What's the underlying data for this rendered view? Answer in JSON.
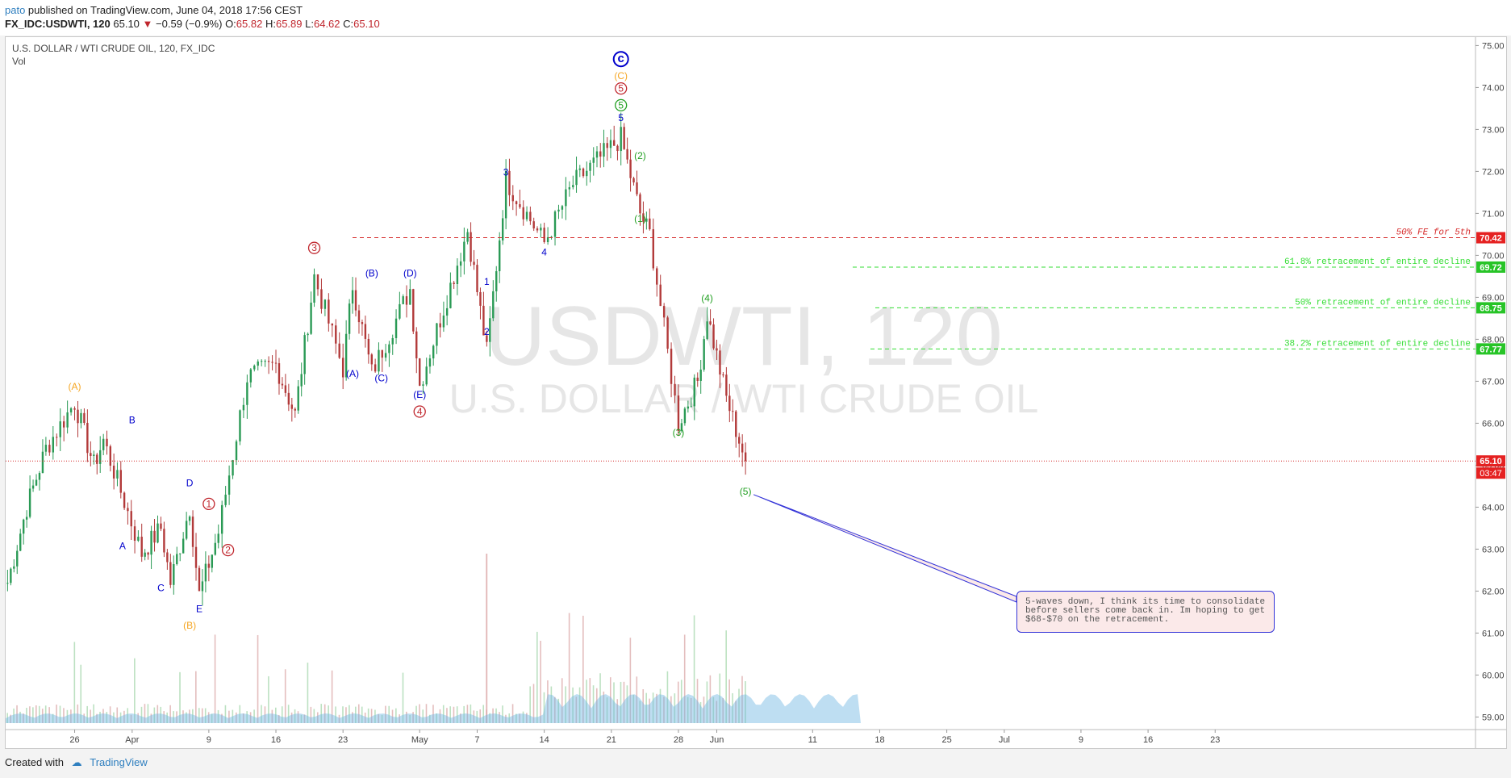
{
  "header": {
    "user": "pato",
    "published_text": " published on TradingView.com, June 04, 2018 17:56 CEST",
    "symbol": "FX_IDC:USDWTI, 120",
    "last": "65.10",
    "change": "−0.59 (−0.9%)",
    "o_label": "O:",
    "o": "65.82",
    "h_label": "H:",
    "h": "65.89",
    "l_label": "L:",
    "l": "64.62",
    "c_label": "C:",
    "c": "65.10"
  },
  "legend": {
    "title": "U.S. DOLLAR / WTI CRUDE OIL, 120, FX_IDC",
    "volume": "Vol"
  },
  "watermark": {
    "line1": "USDWTI, 120",
    "line2": "U.S. DOLLAR / WTI CRUDE OIL"
  },
  "note_text": "5-waves down, I think its time to consolidate before sellers come back in. Im hoping to get $68-$70 on the retracement.",
  "footer": {
    "created_with": "Created with",
    "brand": "TradingView"
  },
  "colors": {
    "blue": "#0000cc",
    "red": "#c0262d",
    "green": "#22a022",
    "orange": "#f5a623",
    "volume": "#6fb6e2"
  },
  "chart_data": {
    "type": "candlestick",
    "title": "U.S. DOLLAR / WTI CRUDE OIL, 120, FX_IDC",
    "x_ticks": [
      "26",
      "Apr",
      "9",
      "16",
      "23",
      "May",
      "7",
      "14",
      "21",
      "28",
      "Jun",
      "11",
      "18",
      "25",
      "Jul",
      "9",
      "16",
      "23"
    ],
    "y_ticks": [
      "75.00",
      "74.00",
      "73.00",
      "72.00",
      "71.00",
      "70.00",
      "69.00",
      "68.00",
      "67.00",
      "66.00",
      "65.00",
      "64.00",
      "63.00",
      "62.00",
      "61.00",
      "60.00",
      "59.00"
    ],
    "ylim": [
      58.7,
      75.2
    ],
    "price_path": [
      {
        "x": "Mar 19",
        "y": 62.2
      },
      {
        "x": "Mar 21",
        "y": 64.0
      },
      {
        "x": "Mar 23",
        "y": 65.4
      },
      {
        "x": "Mar 26",
        "y": 66.5
      },
      {
        "x": "Mar 28",
        "y": 65.0
      },
      {
        "x": "Mar 29",
        "y": 65.6
      },
      {
        "x": "Apr 02",
        "y": 62.9
      },
      {
        "x": "Apr 04",
        "y": 63.5
      },
      {
        "x": "Apr 05",
        "y": 62.2
      },
      {
        "x": "Apr 07",
        "y": 64.0
      },
      {
        "x": "Apr 08",
        "y": 61.9
      },
      {
        "x": "Apr 10",
        "y": 63.4
      },
      {
        "x": "Apr 13",
        "y": 67.1
      },
      {
        "x": "Apr 16",
        "y": 67.4
      },
      {
        "x": "Apr 18",
        "y": 66.2
      },
      {
        "x": "Apr 20",
        "y": 69.5
      },
      {
        "x": "Apr 23",
        "y": 67.3
      },
      {
        "x": "Apr 24",
        "y": 69.3
      },
      {
        "x": "Apr 26",
        "y": 67.2
      },
      {
        "x": "Apr 30",
        "y": 69.2
      },
      {
        "x": "May 01",
        "y": 66.9
      },
      {
        "x": "May 06",
        "y": 70.6
      },
      {
        "x": "May 08",
        "y": 67.7
      },
      {
        "x": "May 10",
        "y": 71.8
      },
      {
        "x": "May 14",
        "y": 70.3
      },
      {
        "x": "May 17",
        "y": 71.7
      },
      {
        "x": "May 22",
        "y": 72.8
      },
      {
        "x": "May 23",
        "y": 71.9
      },
      {
        "x": "May 24",
        "y": 71.0
      },
      {
        "x": "May 25",
        "y": 70.5
      },
      {
        "x": "May 28",
        "y": 66.0
      },
      {
        "x": "May 30",
        "y": 67.0
      },
      {
        "x": "May 31",
        "y": 68.6
      },
      {
        "x": "Jun 02",
        "y": 66.6
      },
      {
        "x": "Jun 04",
        "y": 65.1
      }
    ],
    "annotations": [
      {
        "text": "(A)",
        "x": "Mar 26",
        "y": 66.8,
        "color": "orange"
      },
      {
        "text": "A",
        "x": "Mar 31",
        "y": 63.0,
        "color": "blue"
      },
      {
        "text": "B",
        "x": "Apr 01",
        "y": 66.0,
        "color": "blue"
      },
      {
        "text": "C",
        "x": "Apr 04",
        "y": 62.0,
        "color": "blue"
      },
      {
        "text": "D",
        "x": "Apr 07",
        "y": 64.5,
        "color": "blue"
      },
      {
        "text": "E",
        "x": "Apr 08",
        "y": 61.5,
        "color": "blue"
      },
      {
        "text": "(B)",
        "x": "Apr 07",
        "y": 61.1,
        "color": "orange"
      },
      {
        "text": "1",
        "x": "Apr 09",
        "y": 64.0,
        "color": "red",
        "circle": true
      },
      {
        "text": "2",
        "x": "Apr 11",
        "y": 62.9,
        "color": "red",
        "circle": true
      },
      {
        "text": "3",
        "x": "Apr 20",
        "y": 70.1,
        "color": "red",
        "circle": true
      },
      {
        "text": "(A)",
        "x": "Apr 24",
        "y": 67.1,
        "color": "blue"
      },
      {
        "text": "(B)",
        "x": "Apr 26",
        "y": 69.5,
        "color": "blue"
      },
      {
        "text": "(C)",
        "x": "Apr 27",
        "y": 67.0,
        "color": "blue"
      },
      {
        "text": "(D)",
        "x": "Apr 30",
        "y": 69.5,
        "color": "blue"
      },
      {
        "text": "(E)",
        "x": "May 01",
        "y": 66.6,
        "color": "blue"
      },
      {
        "text": "4",
        "x": "May 01",
        "y": 66.2,
        "color": "red",
        "circle": true
      },
      {
        "text": "1",
        "x": "May 08",
        "y": 69.3,
        "color": "blue"
      },
      {
        "text": "2",
        "x": "May 08",
        "y": 68.1,
        "color": "blue"
      },
      {
        "text": "3",
        "x": "May 10",
        "y": 71.9,
        "color": "blue"
      },
      {
        "text": "4",
        "x": "May 14",
        "y": 70.0,
        "color": "blue"
      },
      {
        "text": "5",
        "x": "May 22",
        "y": 73.2,
        "color": "blue"
      },
      {
        "text": "5",
        "x": "May 22",
        "y": 73.5,
        "color": "green",
        "circle": true
      },
      {
        "text": "5",
        "x": "May 22",
        "y": 73.9,
        "color": "red",
        "circle": true
      },
      {
        "text": "(C)",
        "x": "May 22",
        "y": 74.2,
        "color": "orange"
      },
      {
        "text": "c",
        "x": "May 22",
        "y": 74.6,
        "color": "blue",
        "circle": true
      },
      {
        "text": "(1)",
        "x": "May 24",
        "y": 70.8,
        "color": "green"
      },
      {
        "text": "(2)",
        "x": "May 24",
        "y": 72.3,
        "color": "green"
      },
      {
        "text": "(3)",
        "x": "May 28",
        "y": 65.7,
        "color": "green"
      },
      {
        "text": "(4)",
        "x": "May 31",
        "y": 68.9,
        "color": "green"
      },
      {
        "text": "(5)",
        "x": "Jun 04",
        "y": 64.3,
        "color": "green"
      }
    ],
    "levels": [
      {
        "price": 70.42,
        "label": "50% FE for 5th",
        "color": "red",
        "tag": "70.42"
      },
      {
        "price": 69.72,
        "label": "61.8% retracement of entire decline",
        "color": "green",
        "tag": "69.72"
      },
      {
        "price": 68.75,
        "label": "50% retracement of entire decline",
        "color": "green",
        "tag": "68.75"
      },
      {
        "price": 67.77,
        "label": "38.2% retracement of entire decline",
        "color": "green",
        "tag": "67.77"
      }
    ],
    "last_price": {
      "price": 65.1,
      "tag": "65.10",
      "countdown": "03:47"
    },
    "volume": {
      "max_spike_date": "May 08"
    }
  }
}
